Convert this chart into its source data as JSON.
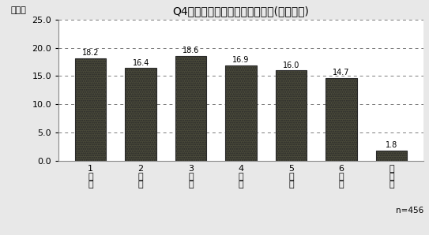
{
  "title": "Q4現在国語を担当している学年(複数回答)",
  "categories": [
    "1\n学\n年",
    "2\n学\n年",
    "3\n学\n年",
    "4\n学\n年",
    "5\n学\n年",
    "6\n学\n年",
    "無\n回\n答"
  ],
  "values": [
    18.2,
    16.4,
    18.6,
    16.9,
    16.0,
    14.7,
    1.8
  ],
  "ylim": [
    0,
    25
  ],
  "yticks": [
    0.0,
    5.0,
    10.0,
    15.0,
    20.0,
    25.0
  ],
  "ylabel": "（％）",
  "note": "n=456",
  "bar_facecolor": "#4a4a3a",
  "bar_edgecolor": "#2a2a2a",
  "background_color": "#e8e8e8",
  "plot_bg_color": "#ffffff",
  "grid_color": "#444444",
  "title_fontsize": 10,
  "label_fontsize": 8,
  "tick_fontsize": 8,
  "value_fontsize": 7,
  "note_fontsize": 7.5
}
